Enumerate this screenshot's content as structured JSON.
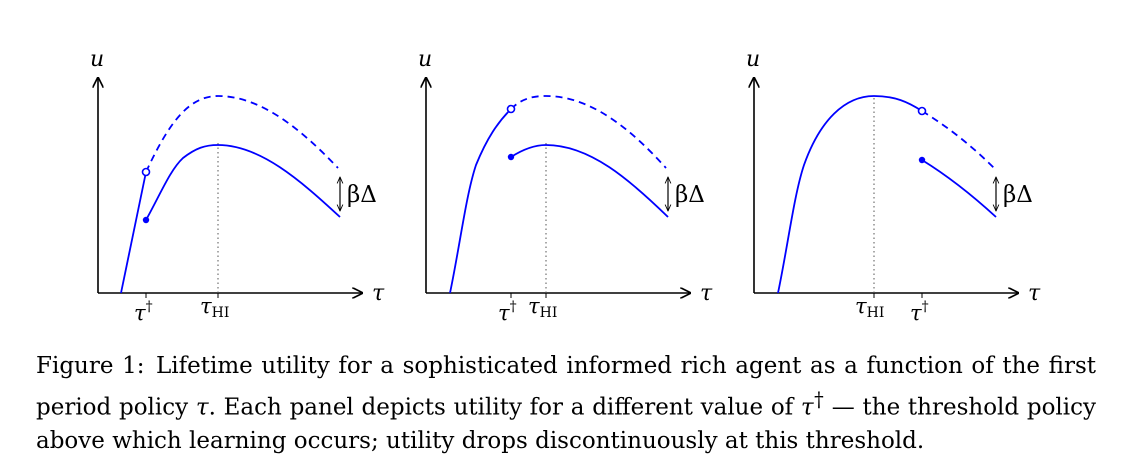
{
  "figure": {
    "panels": [
      {
        "y_axis_label": "u",
        "x_axis_label": "τ",
        "ticks": [
          {
            "main": "τ",
            "sup": "†",
            "sub": ""
          },
          {
            "main": "τ",
            "sup": "",
            "sub": "HI"
          }
        ],
        "gap_label": "βΔ"
      },
      {
        "y_axis_label": "u",
        "x_axis_label": "τ",
        "ticks": [
          {
            "main": "τ",
            "sup": "†",
            "sub": ""
          },
          {
            "main": "τ",
            "sup": "",
            "sub": "HI"
          }
        ],
        "gap_label": "βΔ"
      },
      {
        "y_axis_label": "u",
        "x_axis_label": "τ",
        "ticks": [
          {
            "main": "τ",
            "sup": "",
            "sub": "HI"
          },
          {
            "main": "τ",
            "sup": "†",
            "sub": ""
          }
        ],
        "gap_label": "βΔ"
      }
    ],
    "colors": {
      "curve": "#0000ff",
      "axis": "#000000",
      "guide": "#555555"
    }
  },
  "caption": {
    "label": "Figure 1:",
    "part1": "Lifetime utility for a sophisticated informed rich agent as a function of the first period policy ",
    "tau": "τ",
    "part2": ". Each panel depicts utility for a different value of ",
    "tau_dagger": "τ",
    "dagger": "†",
    "part3": " — the threshold policy above which learning occurs; utility drops discontinuously at this threshold."
  }
}
